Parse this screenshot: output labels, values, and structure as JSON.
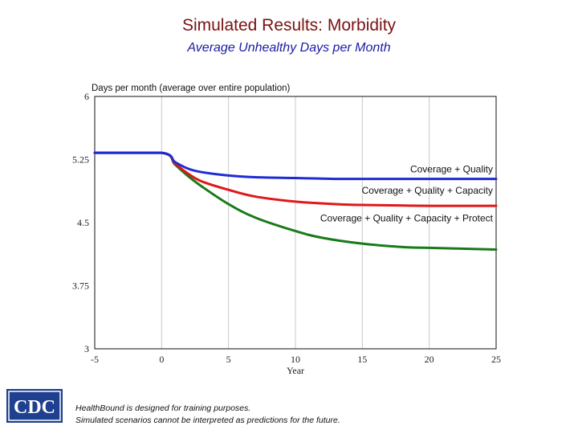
{
  "slide": {
    "title": "Simulated Results: Morbidity",
    "subtitle": "Average Unhealthy Days per Month"
  },
  "chart_data": {
    "type": "line",
    "y_header": "Days per month (average over entire population)",
    "xlabel": "Year",
    "xlim": [
      -5,
      25
    ],
    "ylim": [
      3,
      6
    ],
    "x_ticks": [
      "-5",
      "0",
      "5",
      "10",
      "15",
      "20",
      "25"
    ],
    "y_ticks": [
      "6",
      "5.25",
      "4.5",
      "3.75",
      "3"
    ],
    "grid": "vertical",
    "series": [
      {
        "name": "Coverage + Quality",
        "color": "#1f2bd6",
        "x": [
          -5,
          0,
          1,
          2,
          3,
          5,
          7,
          10,
          13,
          15,
          20,
          25
        ],
        "y": [
          5.33,
          5.33,
          5.22,
          5.14,
          5.1,
          5.06,
          5.04,
          5.03,
          5.02,
          5.02,
          5.02,
          5.02
        ]
      },
      {
        "name": "Coverage + Quality + Capacity",
        "color": "#e01818",
        "x": [
          -5,
          0,
          1,
          2,
          3,
          5,
          7,
          10,
          13,
          15,
          20,
          25
        ],
        "y": [
          5.33,
          5.33,
          5.2,
          5.08,
          4.99,
          4.89,
          4.81,
          4.75,
          4.72,
          4.71,
          4.7,
          4.7
        ]
      },
      {
        "name": "Coverage + Quality + Capacity + Protect",
        "color": "#1a7a1a",
        "x": [
          -5,
          0,
          1,
          2,
          3,
          5,
          7,
          10,
          12,
          15,
          18,
          20,
          25
        ],
        "y": [
          5.33,
          5.33,
          5.19,
          5.05,
          4.93,
          4.72,
          4.56,
          4.4,
          4.32,
          4.25,
          4.21,
          4.2,
          4.18
        ]
      }
    ]
  },
  "footer": {
    "logo_text": "CDC",
    "disclaimer_line1": "HealthBound is designed for training purposes.",
    "disclaimer_line2": "Simulated scenarios cannot be interpreted as predictions for the future."
  }
}
